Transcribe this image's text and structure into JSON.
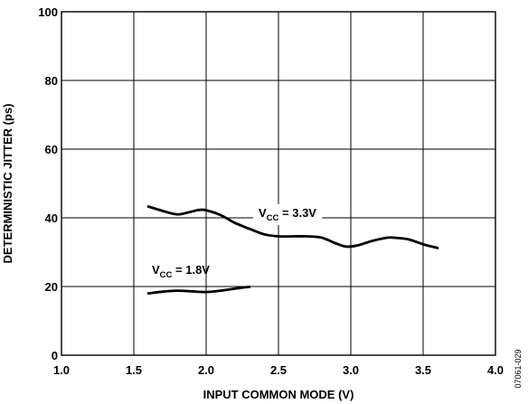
{
  "chart_data": {
    "type": "line",
    "title": "",
    "xlabel": "INPUT COMMON MODE (V)",
    "ylabel": "DETERMINISTIC JITTER (ps)",
    "xlim": [
      1.0,
      4.0
    ],
    "ylim": [
      0,
      100
    ],
    "x_ticks": [
      "1.0",
      "1.5",
      "2.0",
      "2.5",
      "3.0",
      "3.5",
      "4.0"
    ],
    "y_ticks": [
      "0",
      "20",
      "40",
      "60",
      "80",
      "100"
    ],
    "grid": true,
    "legend": "none (series labelled inline)",
    "series": [
      {
        "name": "VCC = 3.3V",
        "label_main": "V",
        "label_sub": "CC",
        "label_rest": " = 3.3V",
        "x": [
          1.6,
          1.7,
          1.8,
          1.88,
          1.95,
          2.0,
          2.1,
          2.2,
          2.3,
          2.4,
          2.5,
          2.6,
          2.7,
          2.8,
          2.9,
          2.97,
          3.05,
          3.15,
          3.25,
          3.3,
          3.4,
          3.5,
          3.6
        ],
        "y": [
          43.3,
          42.0,
          41.0,
          41.6,
          42.3,
          42.2,
          40.8,
          38.5,
          36.8,
          35.2,
          34.6,
          34.6,
          34.6,
          34.2,
          32.5,
          31.6,
          32.0,
          33.3,
          34.2,
          34.2,
          33.7,
          32.3,
          31.2
        ]
      },
      {
        "name": "VCC = 1.8V",
        "label_main": "V",
        "label_sub": "CC",
        "label_rest": " = 1.8V",
        "x": [
          1.6,
          1.7,
          1.8,
          1.9,
          2.0,
          2.1,
          2.2,
          2.3
        ],
        "y": [
          18.0,
          18.5,
          18.8,
          18.6,
          18.4,
          18.8,
          19.4,
          19.9
        ]
      }
    ]
  },
  "figure_code": "07061-029"
}
